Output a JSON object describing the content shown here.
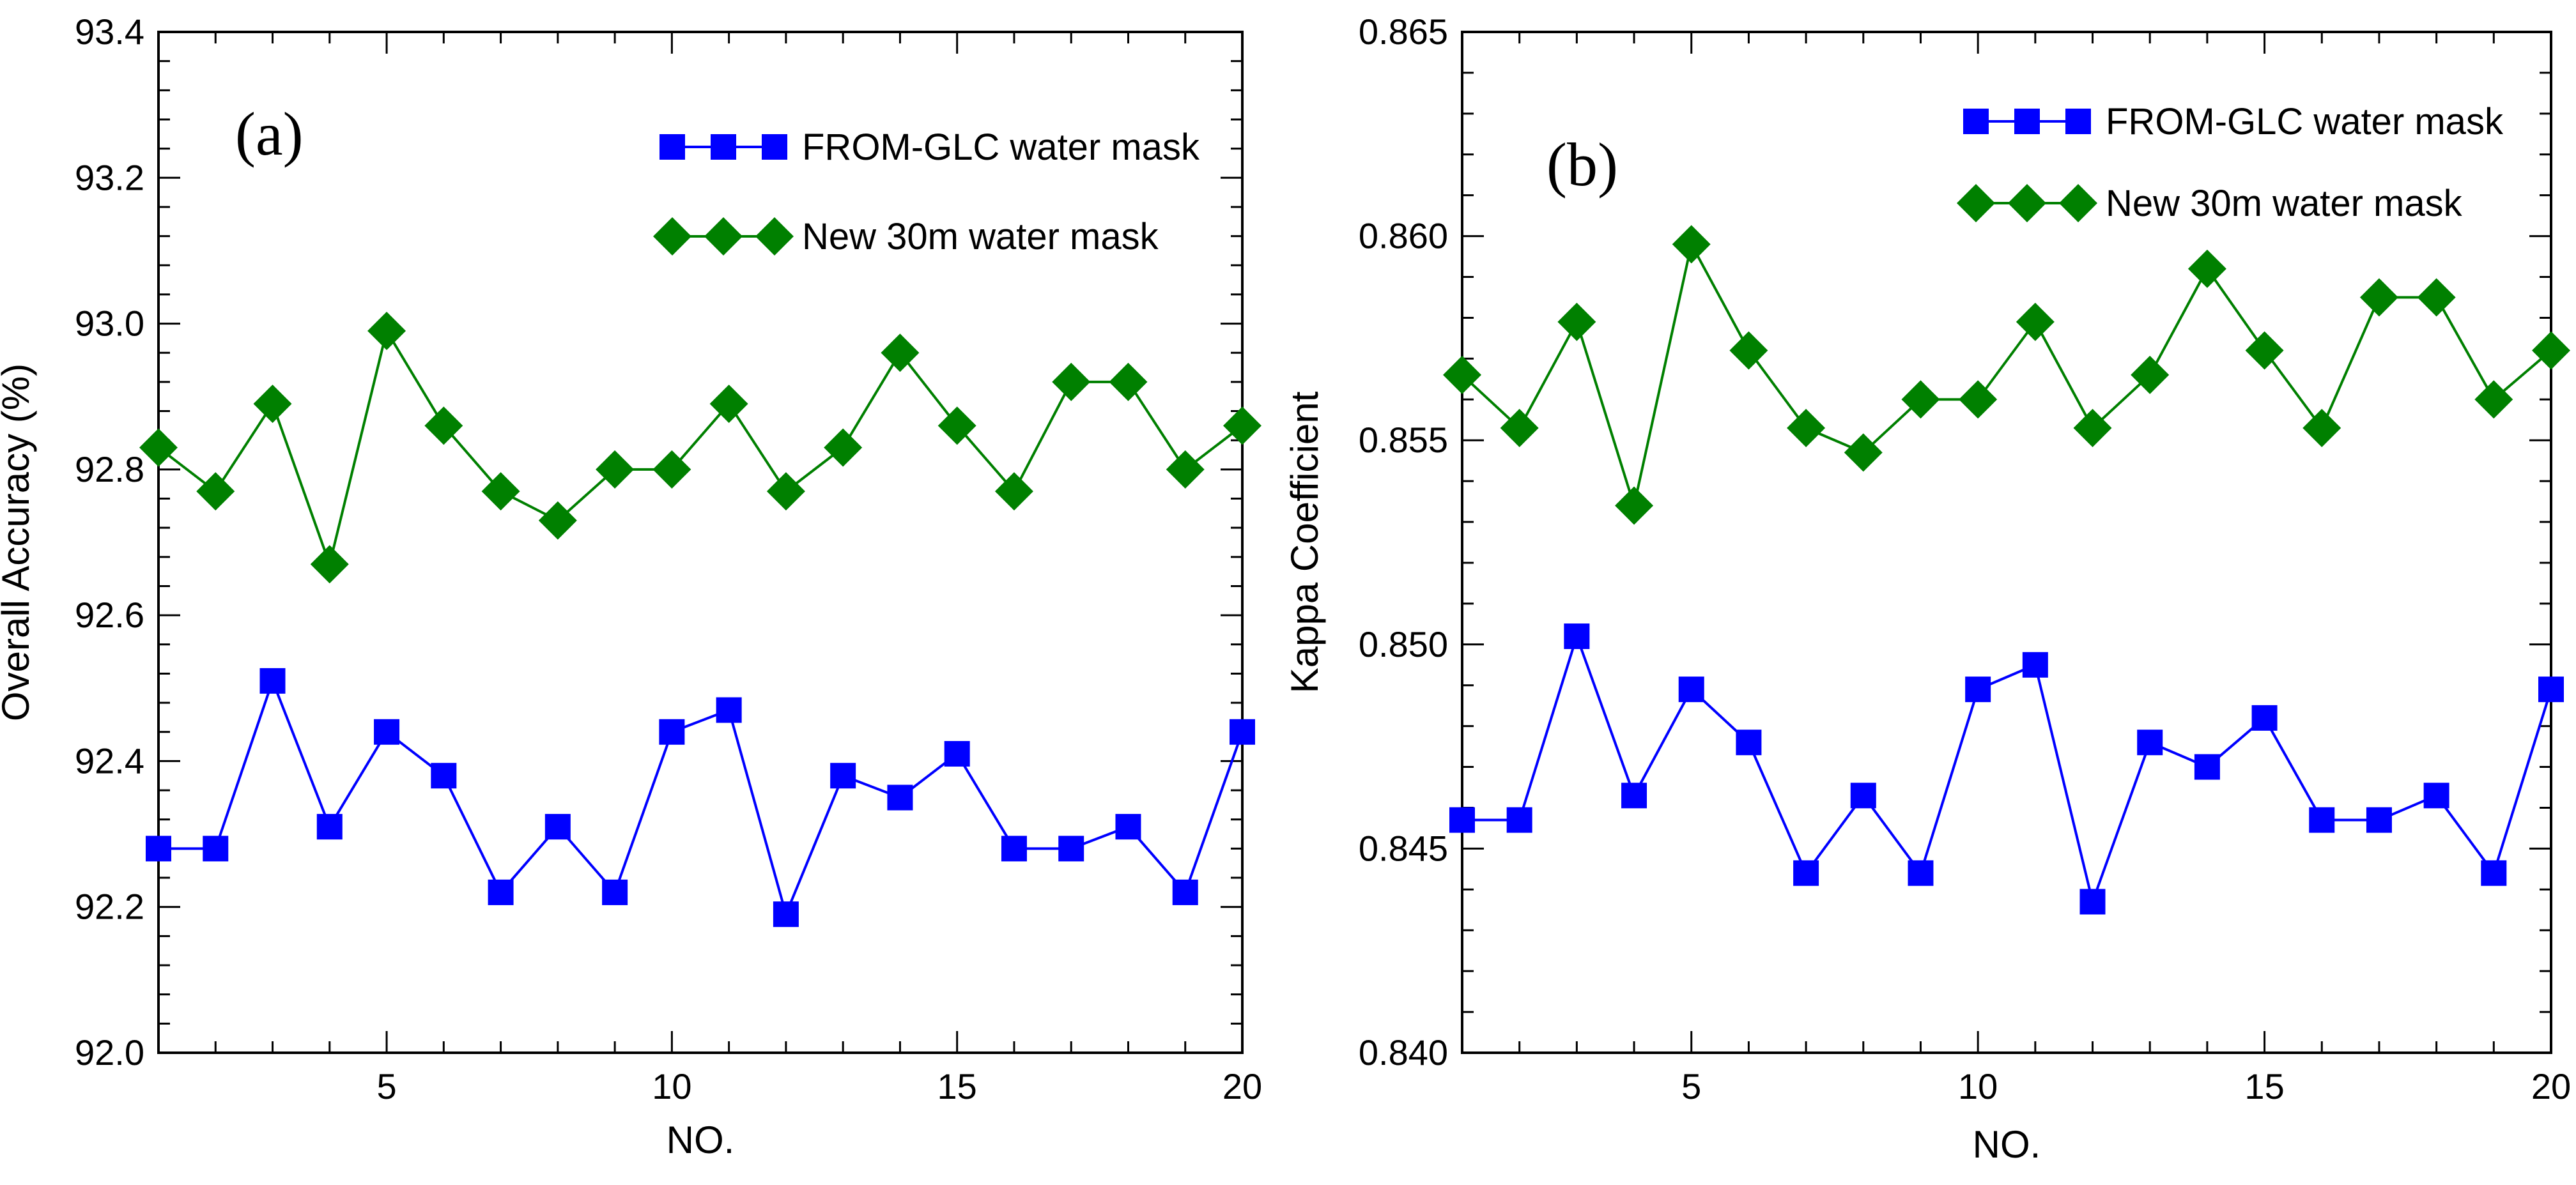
{
  "chart_data": [
    {
      "type": "line",
      "panel_label": "(a)",
      "xlabel": "NO.",
      "ylabel": "Overall Accuracy (%)",
      "xlim": [
        1,
        20
      ],
      "ylim": [
        92.0,
        93.4
      ],
      "xticks": [
        5,
        10,
        15,
        20
      ],
      "yticks": [
        92.0,
        92.2,
        92.4,
        92.6,
        92.8,
        93.0,
        93.2,
        93.4
      ],
      "ytick_labels": [
        "92.0",
        "92.2",
        "92.4",
        "92.6",
        "92.8",
        "93.0",
        "93.2",
        "93.4"
      ],
      "legend": "top-right",
      "x": [
        1,
        2,
        3,
        4,
        5,
        6,
        7,
        8,
        9,
        10,
        11,
        12,
        13,
        14,
        15,
        16,
        17,
        18,
        19,
        20
      ],
      "series": [
        {
          "name": "FROM-GLC water mask",
          "color": "#0000ff",
          "marker": "square",
          "values": [
            92.28,
            92.28,
            92.51,
            92.31,
            92.44,
            92.38,
            92.22,
            92.31,
            92.22,
            92.44,
            92.47,
            92.19,
            92.38,
            92.35,
            92.41,
            92.28,
            92.28,
            92.31,
            92.22,
            92.44
          ]
        },
        {
          "name": "New 30m water mask",
          "color": "#008000",
          "marker": "diamond",
          "values": [
            92.83,
            92.77,
            92.89,
            92.67,
            92.99,
            92.86,
            92.77,
            92.73,
            92.8,
            92.8,
            92.89,
            92.77,
            92.83,
            92.96,
            92.86,
            92.77,
            92.92,
            92.92,
            92.8,
            92.86
          ]
        }
      ]
    },
    {
      "type": "line",
      "panel_label": "(b)",
      "xlabel": "NO.",
      "ylabel": "Kappa Coefficient",
      "xlim": [
        1,
        20
      ],
      "ylim": [
        0.84,
        0.865
      ],
      "xticks": [
        5,
        10,
        15,
        20
      ],
      "yticks": [
        0.84,
        0.845,
        0.85,
        0.855,
        0.86,
        0.865
      ],
      "ytick_labels": [
        "0.840",
        "0.845",
        "0.850",
        "0.855",
        "0.860",
        "0.865"
      ],
      "legend": "top-right",
      "x": [
        1,
        2,
        3,
        4,
        5,
        6,
        7,
        8,
        9,
        10,
        11,
        12,
        13,
        14,
        15,
        16,
        17,
        18,
        19,
        20
      ],
      "series": [
        {
          "name": "FROM-GLC water mask",
          "color": "#0000ff",
          "marker": "square",
          "values": [
            0.8457,
            0.8457,
            0.8502,
            0.8463,
            0.8489,
            0.8476,
            0.8444,
            0.8463,
            0.8444,
            0.8489,
            0.8495,
            0.8437,
            0.8476,
            0.847,
            0.8482,
            0.8457,
            0.8457,
            0.8463,
            0.8444,
            0.8489
          ]
        },
        {
          "name": "New 30m water mask",
          "color": "#008000",
          "marker": "diamond",
          "values": [
            0.8566,
            0.8553,
            0.8579,
            0.8534,
            0.8598,
            0.8572,
            0.8553,
            0.8547,
            0.856,
            0.856,
            0.8579,
            0.8553,
            0.8566,
            0.8592,
            0.8572,
            0.8553,
            0.8585,
            0.8585,
            0.856,
            0.8572
          ]
        }
      ]
    }
  ]
}
